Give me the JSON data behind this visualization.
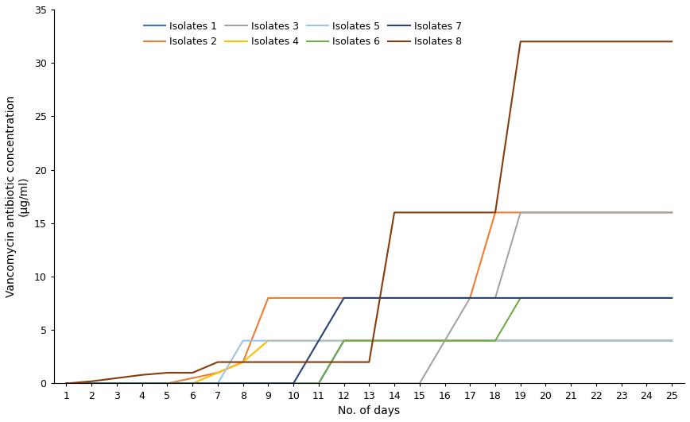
{
  "series": [
    {
      "name": "Isolates 1",
      "color": "#4472C4",
      "linewidth": 1.5,
      "x": [
        1,
        2,
        3,
        4,
        5,
        6,
        7,
        8,
        9,
        10,
        11,
        12,
        13,
        14,
        15,
        16,
        17,
        18,
        19,
        20,
        21,
        22,
        23,
        24,
        25
      ],
      "y": [
        0,
        0,
        0,
        0,
        0,
        0,
        0,
        0,
        0,
        0,
        0,
        4,
        4,
        4,
        4,
        4,
        4,
        4,
        4,
        4,
        4,
        4,
        4,
        4,
        4
      ]
    },
    {
      "name": "Isolates 2",
      "color": "#ED7D31",
      "linewidth": 1.5,
      "x": [
        1,
        2,
        3,
        4,
        5,
        6,
        7,
        8,
        9,
        10,
        11,
        12,
        13,
        14,
        15,
        16,
        17,
        18,
        19,
        20,
        21,
        22,
        23,
        24,
        25
      ],
      "y": [
        0,
        0,
        0,
        0,
        0,
        0.5,
        1,
        2,
        8,
        8,
        8,
        8,
        8,
        8,
        8,
        8,
        8,
        16,
        16,
        16,
        16,
        16,
        16,
        16,
        16
      ]
    },
    {
      "name": "Isolates 3",
      "color": "#A5A5A5",
      "linewidth": 1.5,
      "x": [
        1,
        2,
        3,
        4,
        5,
        6,
        7,
        8,
        9,
        10,
        11,
        12,
        13,
        14,
        15,
        16,
        17,
        18,
        19,
        20,
        21,
        22,
        23,
        24,
        25
      ],
      "y": [
        0,
        0,
        0,
        0,
        0,
        0,
        0,
        0,
        0,
        0,
        0,
        0,
        0,
        0,
        0,
        4,
        8,
        8,
        16,
        16,
        16,
        16,
        16,
        16,
        16
      ]
    },
    {
      "name": "Isolates 4",
      "color": "#FFC000",
      "linewidth": 1.5,
      "x": [
        1,
        2,
        3,
        4,
        5,
        6,
        7,
        8,
        9,
        10,
        11,
        12,
        13,
        14,
        15,
        16,
        17,
        18,
        19,
        20,
        21,
        22,
        23,
        24,
        25
      ],
      "y": [
        0,
        0,
        0,
        0,
        0,
        0,
        1,
        2,
        4,
        4,
        4,
        4,
        4,
        4,
        4,
        4,
        4,
        4,
        4,
        4,
        4,
        4,
        4,
        4,
        4
      ]
    },
    {
      "name": "Isolates 5",
      "color": "#9DC3E6",
      "linewidth": 1.5,
      "x": [
        1,
        2,
        3,
        4,
        5,
        6,
        7,
        8,
        9,
        10,
        11,
        12,
        13,
        14,
        15,
        16,
        17,
        18,
        19,
        20,
        21,
        22,
        23,
        24,
        25
      ],
      "y": [
        0,
        0,
        0,
        0,
        0,
        0,
        0,
        4,
        4,
        4,
        4,
        4,
        4,
        4,
        4,
        4,
        4,
        4,
        4,
        4,
        4,
        4,
        4,
        4,
        4
      ]
    },
    {
      "name": "Isolates 6",
      "color": "#70AD47",
      "linewidth": 1.5,
      "x": [
        1,
        2,
        3,
        4,
        5,
        6,
        7,
        8,
        9,
        10,
        11,
        12,
        13,
        14,
        15,
        16,
        17,
        18,
        19,
        20,
        21,
        22,
        23,
        24,
        25
      ],
      "y": [
        0,
        0,
        0,
        0,
        0,
        0,
        0,
        0,
        0,
        0,
        0,
        4,
        4,
        4,
        4,
        4,
        4,
        4,
        8,
        8,
        8,
        8,
        8,
        8,
        8
      ]
    },
    {
      "name": "Isolates 7",
      "color": "#264478",
      "linewidth": 1.5,
      "x": [
        1,
        2,
        3,
        4,
        5,
        6,
        7,
        8,
        9,
        10,
        11,
        12,
        13,
        14,
        15,
        16,
        17,
        18,
        19,
        20,
        21,
        22,
        23,
        24,
        25
      ],
      "y": [
        0,
        0,
        0,
        0,
        0,
        0,
        0,
        0,
        0,
        0,
        4,
        8,
        8,
        8,
        8,
        8,
        8,
        8,
        8,
        8,
        8,
        8,
        8,
        8,
        8
      ]
    },
    {
      "name": "Isolates 8",
      "color": "#843C0C",
      "linewidth": 1.5,
      "x": [
        1,
        2,
        3,
        4,
        5,
        6,
        7,
        8,
        9,
        10,
        11,
        12,
        13,
        14,
        15,
        16,
        17,
        18,
        19,
        20,
        21,
        22,
        23,
        24,
        25
      ],
      "y": [
        0,
        0.2,
        0.5,
        0.8,
        1,
        1,
        2,
        2,
        2,
        2,
        2,
        2,
        2,
        16,
        16,
        16,
        16,
        16,
        32,
        32,
        32,
        32,
        32,
        32,
        32
      ]
    }
  ],
  "xlabel": "No. of days",
  "ylabel": "Vancomycin antibiotic concentration\n(µg/ml)",
  "xlim": [
    0.5,
    25.5
  ],
  "ylim": [
    0,
    35
  ],
  "xticks": [
    1,
    2,
    3,
    4,
    5,
    6,
    7,
    8,
    9,
    10,
    11,
    12,
    13,
    14,
    15,
    16,
    17,
    18,
    19,
    20,
    21,
    22,
    23,
    24,
    25
  ],
  "yticks": [
    0,
    5,
    10,
    15,
    20,
    25,
    30,
    35
  ],
  "background_color": "#FFFFFF"
}
